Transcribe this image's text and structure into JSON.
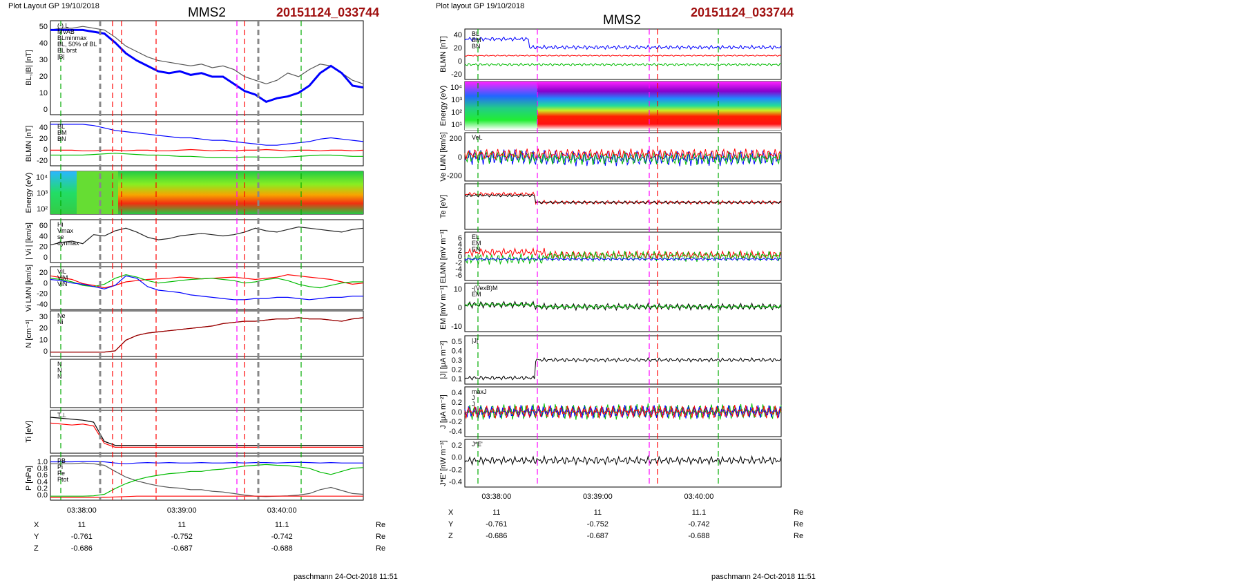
{
  "left": {
    "header_left": "Plot Layout GP 19/10/2018",
    "header_title": "MMS2",
    "header_id": "20151124_033744",
    "footer": "paschmann 24-Oct-2018 11:51",
    "time_ticks": [
      "03:38:00",
      "03:39:00",
      "03:40:00"
    ],
    "coords": {
      "rows": [
        {
          "label": "X",
          "values": [
            "11",
            "11",
            "11.1"
          ],
          "unit": "Re"
        },
        {
          "label": "Y",
          "values": [
            "-0.761",
            "-0.752",
            "-0.742"
          ],
          "unit": "Re"
        },
        {
          "label": "Z",
          "values": [
            "-0.686",
            "-0.687",
            "-0.688"
          ],
          "unit": "Re"
        }
      ]
    },
    "panels": [
      {
        "ylabel": "BL,|B| [nT]",
        "yticks": [
          "50",
          "40",
          "30",
          "20",
          "10",
          "0"
        ],
        "legend": [
          "(-) L",
          "MVAB",
          "BLminmax",
          "BL, 50% of BL",
          "BL brst",
          "|B|"
        ],
        "series": [
          {
            "name": "|B|",
            "color": "#555555",
            "values": [
              46,
              47,
              47,
              48,
              47,
              46,
              42,
              37,
              34,
              31,
              29,
              28,
              27,
              26,
              27,
              25,
              26,
              24,
              20,
              18,
              16,
              18,
              22,
              20,
              24,
              27,
              26,
              22,
              18,
              16
            ]
          },
          {
            "name": "BL",
            "color": "#0000ff",
            "values": [
              46,
              46,
              46,
              46,
              45,
              44,
              39,
              33,
              29,
              26,
              23,
              22,
              23,
              21,
              22,
              20,
              20,
              16,
              12,
              10,
              6,
              8,
              9,
              11,
              15,
              22,
              26,
              22,
              15,
              14
            ]
          }
        ]
      },
      {
        "ylabel": "BLMN [nT]",
        "yticks": [
          "40",
          "20",
          "0",
          "-20"
        ],
        "legend": [
          "BL",
          "BM",
          "BN"
        ],
        "series": [
          {
            "name": "BL",
            "color": "#0000ff",
            "values": [
              44,
              44,
              44,
              44,
              42,
              38,
              34,
              32,
              30,
              28,
              26,
              24,
              22,
              22,
              20,
              18,
              18,
              16,
              14,
              12,
              10,
              10,
              12,
              14,
              16,
              20,
              22,
              20,
              18,
              16
            ]
          },
          {
            "name": "BM",
            "color": "#00bb00",
            "values": [
              -6,
              -6,
              -6,
              -6,
              -5,
              -4,
              -3,
              -4,
              -5,
              -6,
              -6,
              -7,
              -8,
              -8,
              -9,
              -10,
              -10,
              -10,
              -9,
              -9,
              -10,
              -10,
              -9,
              -8,
              -7,
              -6,
              -6,
              -7,
              -8,
              -8
            ]
          },
          {
            "name": "BN",
            "color": "#ff0000",
            "values": [
              2,
              2,
              2,
              1,
              1,
              2,
              2,
              1,
              2,
              2,
              1,
              1,
              2,
              3,
              2,
              1,
              2,
              1,
              2,
              2,
              3,
              2,
              1,
              2,
              2,
              1,
              2,
              2,
              1,
              2
            ]
          }
        ]
      },
      {
        "ylabel": "Energy (eV)",
        "yticks": [
          "10⁴",
          "10³",
          "10²"
        ],
        "type": "spectrogram"
      },
      {
        "ylabel": "| Vi | [km/s]",
        "yticks": [
          "60",
          "40",
          "20",
          "0"
        ],
        "legend": [
          "Hi",
          "Vmax",
          "se",
          "dynmax"
        ],
        "series": [
          {
            "name": "|Vi|",
            "color": "#222222",
            "values": [
              24,
              28,
              30,
              26,
              40,
              38,
              46,
              50,
              44,
              36,
              32,
              34,
              38,
              40,
              42,
              40,
              38,
              40,
              44,
              50,
              46,
              44,
              48,
              52,
              50,
              48,
              46,
              44,
              48,
              50
            ]
          }
        ]
      },
      {
        "ylabel": "Vi LMN [km/s]",
        "yticks": [
          "20",
          "0",
          "-20",
          "-40"
        ],
        "legend": [
          "ViL",
          "ViM",
          "ViN"
        ],
        "series": [
          {
            "name": "ViL",
            "color": "#ff0000",
            "values": [
              8,
              5,
              2,
              -5,
              -8,
              -12,
              -8,
              -2,
              0,
              2,
              3,
              4,
              6,
              5,
              3,
              4,
              5,
              6,
              4,
              2,
              4,
              6,
              10,
              8,
              6,
              4,
              2,
              -2,
              -6,
              -4
            ]
          },
          {
            "name": "ViM",
            "color": "#00bb00",
            "values": [
              4,
              2,
              -2,
              -8,
              -10,
              -6,
              4,
              10,
              6,
              0,
              -4,
              -2,
              0,
              2,
              3,
              4,
              2,
              0,
              -4,
              -2,
              2,
              4,
              0,
              -6,
              -10,
              -12,
              -8,
              -4,
              -2,
              -2
            ]
          },
          {
            "name": "ViN",
            "color": "#0000ff",
            "values": [
              2,
              0,
              -4,
              -6,
              -10,
              -14,
              -8,
              8,
              4,
              -10,
              -16,
              -18,
              -20,
              -24,
              -26,
              -28,
              -30,
              -32,
              -32,
              -30,
              -30,
              -28,
              -28,
              -30,
              -32,
              -30,
              -28,
              -28,
              -26,
              -26
            ]
          }
        ]
      },
      {
        "ylabel": "N [cm⁻³]",
        "yticks": [
          "30",
          "20",
          "10",
          "0"
        ],
        "legend": [
          "Ne",
          "Ni"
        ],
        "series": [
          {
            "name": "Ne",
            "color": "#ff0000",
            "values": [
              2,
              2,
              2,
              2,
              2,
              2,
              3,
              12,
              16,
              18,
              19,
              20,
              21,
              22,
              23,
              24,
              26,
              27,
              28,
              28,
              29,
              30,
              30,
              31,
              30,
              30,
              29,
              28,
              30,
              31
            ]
          },
          {
            "name": "Ni",
            "color": "#8b0000",
            "values": [
              2,
              2,
              2,
              2,
              2,
              2,
              3,
              12,
              16,
              18,
              19,
              20,
              21,
              22,
              23,
              24,
              26,
              27,
              28,
              28,
              29,
              30,
              30,
              31,
              30,
              30,
              29,
              28,
              30,
              31
            ]
          }
        ]
      },
      {
        "ylabel": "",
        "yticks": [],
        "legend": [
          "N",
          "N",
          "N"
        ]
      },
      {
        "ylabel": "Ti [eV]",
        "yticks": [],
        "legend": [
          "T⊥"
        ],
        "series": [
          {
            "name": "T⊥",
            "color": "#000000",
            "values": [
              70,
              68,
              66,
              64,
              60,
              20,
              12,
              12,
              12,
              12,
              12,
              12,
              12,
              12,
              12,
              12,
              12,
              12,
              12,
              12,
              12,
              12,
              12,
              12,
              12,
              12,
              12,
              12,
              12,
              12
            ]
          },
          {
            "name": "T∥",
            "color": "#ff0000",
            "values": [
              58,
              56,
              54,
              56,
              52,
              16,
              8,
              8,
              8,
              8,
              8,
              8,
              8,
              8,
              8,
              8,
              8,
              8,
              8,
              8,
              8,
              8,
              8,
              8,
              8,
              8,
              8,
              8,
              8,
              8
            ]
          }
        ]
      },
      {
        "ylabel": "P [nPa]",
        "yticks": [
          "1.0",
          "0.8",
          "0.6",
          "0.4",
          "0.2",
          "0.0"
        ],
        "legend": [
          "PB",
          "Pi",
          "Pe",
          "Ptot"
        ],
        "series": [
          {
            "name": "Ptot",
            "color": "#0000ff",
            "values": [
              0.95,
              0.95,
              0.95,
              0.96,
              0.96,
              0.95,
              0.92,
              0.9,
              0.92,
              0.93,
              0.92,
              0.93,
              0.92,
              0.92,
              0.93,
              0.92,
              0.92,
              0.93,
              0.92,
              0.93,
              0.93,
              0.92,
              0.93,
              0.94,
              0.93,
              0.92,
              0.93,
              0.92,
              0.92,
              0.92
            ]
          },
          {
            "name": "PB",
            "color": "#555555",
            "values": [
              0.9,
              0.9,
              0.9,
              0.92,
              0.9,
              0.86,
              0.7,
              0.55,
              0.45,
              0.38,
              0.32,
              0.28,
              0.26,
              0.22,
              0.22,
              0.18,
              0.16,
              0.12,
              0.08,
              0.05,
              0.04,
              0.05,
              0.06,
              0.08,
              0.12,
              0.22,
              0.28,
              0.2,
              0.12,
              0.1
            ]
          },
          {
            "name": "Pi",
            "color": "#00bb00",
            "values": [
              0.05,
              0.05,
              0.05,
              0.05,
              0.06,
              0.1,
              0.25,
              0.38,
              0.48,
              0.55,
              0.6,
              0.64,
              0.66,
              0.7,
              0.7,
              0.74,
              0.76,
              0.8,
              0.84,
              0.86,
              0.88,
              0.86,
              0.85,
              0.82,
              0.78,
              0.68,
              0.62,
              0.7,
              0.78,
              0.8
            ]
          },
          {
            "name": "Pe",
            "color": "#ff0000",
            "values": [
              0.02,
              0.02,
              0.02,
              0.02,
              0.02,
              0.02,
              0.03,
              0.04,
              0.05,
              0.05,
              0.05,
              0.05,
              0.05,
              0.05,
              0.05,
              0.05,
              0.05,
              0.05,
              0.05,
              0.05,
              0.05,
              0.05,
              0.05,
              0.05,
              0.05,
              0.05,
              0.05,
              0.05,
              0.05,
              0.05
            ]
          }
        ]
      }
    ]
  },
  "right": {
    "header_left": "Plot layout GP 19/10/2018",
    "header_title": "MMS2",
    "header_id": "20151124_033744",
    "footer": "paschmann 24-Oct-2018 11:51",
    "time_ticks": [
      "03:38:00",
      "03:39:00",
      "03:40:00"
    ],
    "coords": {
      "rows": [
        {
          "label": "X",
          "values": [
            "11",
            "11",
            "11.1"
          ],
          "unit": "Re"
        },
        {
          "label": "Y",
          "values": [
            "-0.761",
            "-0.752",
            "-0.742"
          ],
          "unit": "Re"
        },
        {
          "label": "Z",
          "values": [
            "-0.686",
            "-0.687",
            "-0.688"
          ],
          "unit": "Re"
        }
      ]
    },
    "panels": [
      {
        "ylabel": "BLMN [nT]",
        "yticks": [
          "40",
          "20",
          "0",
          "-20"
        ],
        "legend": [
          "BL",
          "BM",
          "BN"
        ]
      },
      {
        "ylabel": "Energy (eV)",
        "yticks": [
          "10⁴",
          "10³",
          "10²",
          "10¹"
        ],
        "type": "spectrogram"
      },
      {
        "ylabel": "Ve LMN [km/s]",
        "yticks": [
          "200",
          "0",
          "-200"
        ],
        "legend": [
          "VeL"
        ]
      },
      {
        "ylabel": "Te [eV]",
        "yticks": []
      },
      {
        "ylabel": "ELMN [mV m⁻¹]",
        "yticks": [
          "6",
          "4",
          "2",
          "0",
          "-2",
          "-4",
          "-6"
        ],
        "legend": [
          "EL",
          "EM",
          "EN"
        ]
      },
      {
        "ylabel": "EM [mV m⁻¹]",
        "yticks": [
          "10",
          "0",
          "-10"
        ],
        "legend": [
          "-(VexB)M",
          "EM"
        ]
      },
      {
        "ylabel": "|J| [μA m⁻²]",
        "yticks": [
          "0.5",
          "0.4",
          "0.3",
          "0.2",
          "0.1"
        ],
        "legend": [
          "|J|"
        ]
      },
      {
        "ylabel": "J [μA m⁻²]",
        "yticks": [
          "0.4",
          "0.2",
          "0.0",
          "-0.2",
          "-0.4"
        ],
        "legend": [
          "maxJ",
          "J",
          "J"
        ]
      },
      {
        "ylabel": "J*E' [nW m⁻³]",
        "yticks": [
          "0.2",
          "0.0",
          "-0.2",
          "-0.4"
        ],
        "legend": [
          "J*E'"
        ]
      }
    ]
  },
  "colors": {
    "title_id": "#a01010",
    "bl": "#0000ff",
    "bm": "#00bb00",
    "bn": "#ff0000"
  },
  "chart_data": [
    {
      "type": "line",
      "title": "MMS2",
      "subtitle": "20151124_033744",
      "x_ticks": [
        "03:38:00",
        "03:39:00",
        "03:40:00"
      ],
      "panels": [
        "BL,|B| [nT]",
        "BLMN [nT]",
        "Energy (eV)",
        "| Vi | [km/s]",
        "Vi LMN [km/s]",
        "N [cm⁻³]",
        "Ti [eV]",
        "P [nPa]"
      ]
    },
    {
      "type": "line",
      "title": "MMS2",
      "subtitle": "20151124_033744",
      "x_ticks": [
        "03:38:00",
        "03:39:00",
        "03:40:00"
      ],
      "panels": [
        "BLMN [nT]",
        "Energy (eV)",
        "Ve LMN [km/s]",
        "Te [eV]",
        "ELMN [mV m⁻¹]",
        "EM [mV m⁻¹]",
        "|J| [μA m⁻²]",
        "J [μA m⁻²]",
        "J*E' [nW m⁻³]"
      ]
    }
  ]
}
